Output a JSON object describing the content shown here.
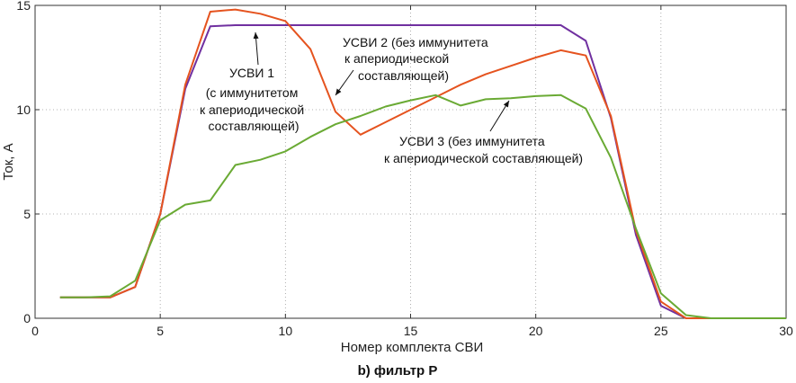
{
  "chart_data": {
    "type": "line",
    "xlabel": "Номер комплекта СВИ",
    "ylabel": "Ток, А",
    "xlim": [
      0,
      30
    ],
    "ylim": [
      0,
      15
    ],
    "xticks": [
      0,
      5,
      10,
      15,
      20,
      25,
      30
    ],
    "yticks": [
      0,
      5,
      10,
      15
    ],
    "grid": true,
    "caption": "b) фильтр P",
    "series": [
      {
        "key": "s1",
        "color": "#7030a0",
        "x": [
          1,
          2,
          3,
          4,
          5,
          6,
          7,
          8,
          9,
          10,
          11,
          12,
          13,
          14,
          15,
          16,
          17,
          18,
          19,
          20,
          21,
          22,
          23,
          24,
          25,
          26,
          27,
          28,
          29,
          30
        ],
        "values": [
          1.0,
          1.0,
          1.0,
          1.5,
          5.0,
          11.0,
          14.0,
          14.05,
          14.05,
          14.05,
          14.05,
          14.05,
          14.05,
          14.05,
          14.05,
          14.05,
          14.05,
          14.05,
          14.05,
          14.05,
          14.05,
          13.3,
          9.6,
          4.0,
          0.6,
          0.0,
          0.0,
          0.0,
          0.0,
          0.0
        ]
      },
      {
        "key": "s2",
        "color": "#e5531f",
        "x": [
          1,
          2,
          3,
          4,
          5,
          6,
          7,
          8,
          9,
          10,
          11,
          12,
          13,
          14,
          15,
          16,
          17,
          18,
          19,
          20,
          21,
          22,
          23,
          24,
          25,
          26,
          27,
          28,
          29,
          30
        ],
        "values": [
          1.0,
          1.0,
          1.0,
          1.5,
          5.0,
          11.2,
          14.7,
          14.8,
          14.6,
          14.25,
          12.9,
          9.9,
          8.8,
          9.4,
          10.0,
          10.6,
          11.2,
          11.7,
          12.1,
          12.5,
          12.85,
          12.6,
          9.7,
          4.2,
          0.8,
          0.0,
          0.0,
          0.0,
          0.0,
          0.0
        ]
      },
      {
        "key": "s3",
        "color": "#6aaa34",
        "x": [
          1,
          2,
          3,
          4,
          5,
          6,
          7,
          8,
          9,
          10,
          11,
          12,
          13,
          14,
          15,
          16,
          17,
          18,
          19,
          20,
          21,
          22,
          23,
          24,
          25,
          26,
          27,
          28,
          29,
          30
        ],
        "values": [
          1.0,
          1.0,
          1.05,
          1.8,
          4.7,
          5.45,
          5.65,
          7.35,
          7.6,
          8.0,
          8.7,
          9.3,
          9.7,
          10.15,
          10.45,
          10.7,
          10.2,
          10.5,
          10.55,
          10.65,
          10.7,
          10.05,
          7.7,
          4.3,
          1.2,
          0.15,
          0.0,
          0.0,
          0.0,
          0.0
        ]
      }
    ],
    "annotations": [
      {
        "key": "a1",
        "lines": [
          "УСВИ      1",
          "(с иммунитетом",
          "к апериодической",
          "составляющей)"
        ],
        "points_to": [
          9.8,
          14.0
        ]
      },
      {
        "key": "a2",
        "lines": [
          "УСВИ      2 (без иммунитета",
          "к апериодической",
          "составляющей)"
        ],
        "points_to": [
          12.2,
          10.5
        ]
      },
      {
        "key": "a3",
        "lines": [
          "УСВИ      3 (без иммунитета",
          "к апериодической составляющей)"
        ],
        "points_to": [
          19.0,
          10.6
        ]
      }
    ]
  }
}
